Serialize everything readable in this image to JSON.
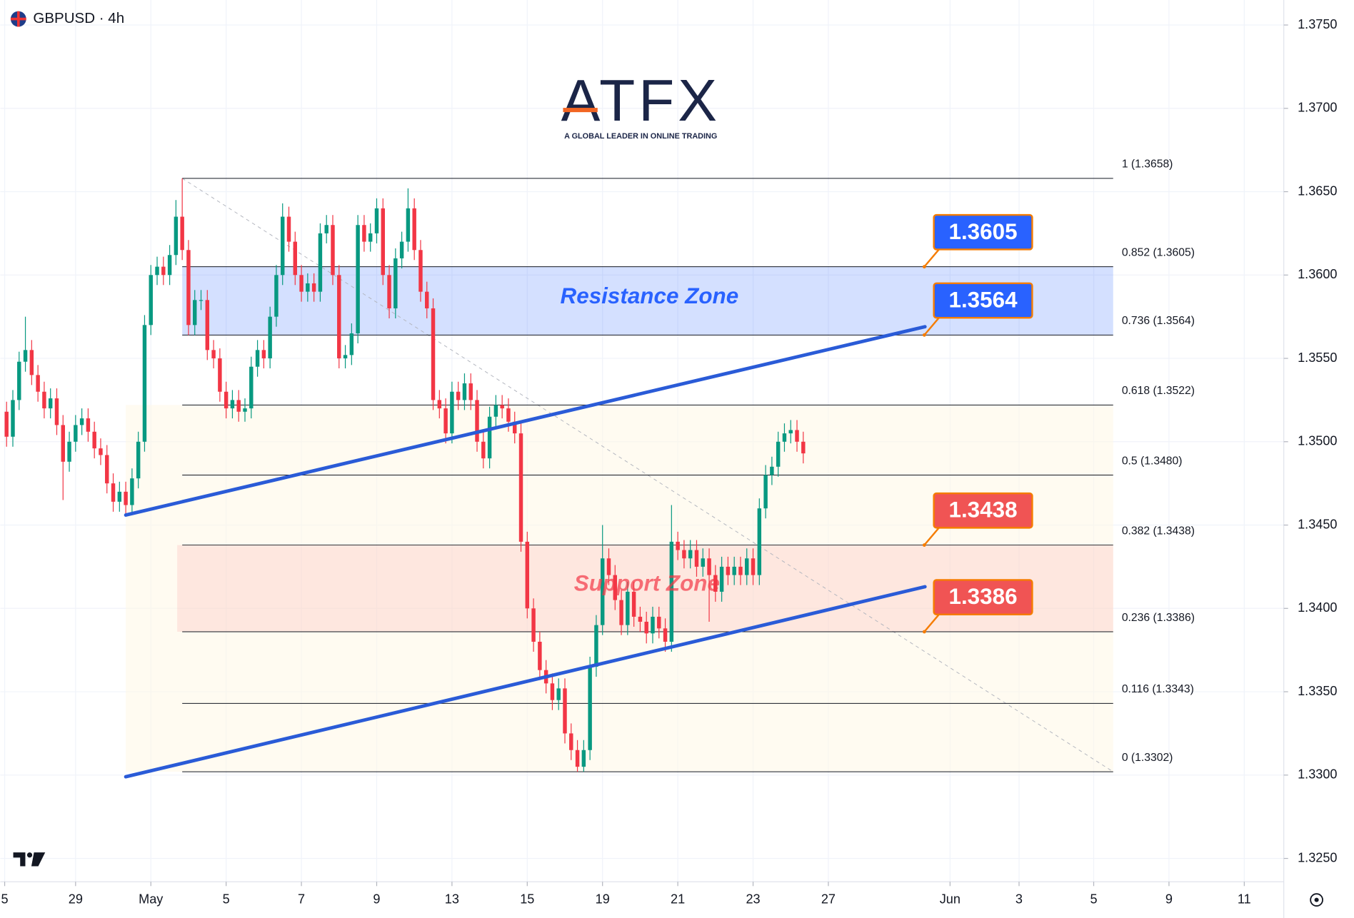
{
  "chart_data": {
    "type": "candlestick",
    "title": "GBPUSD · 4h",
    "logo": {
      "name": "ATFX",
      "tagline": "A GLOBAL LEADER IN ONLINE TRADING"
    },
    "up_color": "#089981",
    "down_color": "#f23645",
    "xlim": [
      0,
      204.6
    ],
    "ylim": [
      1.3236,
      1.3765
    ],
    "grid": true,
    "xticks": [
      {
        "value": 0.7,
        "label": "5"
      },
      {
        "value": 12,
        "label": "29"
      },
      {
        "value": 24,
        "label": "May"
      },
      {
        "value": 36,
        "label": "5"
      },
      {
        "value": 48,
        "label": "7"
      },
      {
        "value": 60,
        "label": "9"
      },
      {
        "value": 72,
        "label": "13"
      },
      {
        "value": 84,
        "label": "15"
      },
      {
        "value": 96,
        "label": "19"
      },
      {
        "value": 108,
        "label": "21"
      },
      {
        "value": 120,
        "label": "23"
      },
      {
        "value": 132,
        "label": "27"
      },
      {
        "value": 151.4,
        "label": "Jun"
      },
      {
        "value": 162.4,
        "label": "3"
      },
      {
        "value": 174.3,
        "label": "5"
      },
      {
        "value": 186.3,
        "label": "9"
      },
      {
        "value": 198.3,
        "label": "11"
      }
    ],
    "yticks": [
      {
        "value": 1.375,
        "label": "1.3750"
      },
      {
        "value": 1.37,
        "label": "1.3700"
      },
      {
        "value": 1.365,
        "label": "1.3650"
      },
      {
        "value": 1.36,
        "label": "1.3600"
      },
      {
        "value": 1.355,
        "label": "1.3550"
      },
      {
        "value": 1.35,
        "label": "1.3500"
      },
      {
        "value": 1.345,
        "label": "1.3450"
      },
      {
        "value": 1.34,
        "label": "1.3400"
      },
      {
        "value": 1.335,
        "label": "1.3350"
      },
      {
        "value": 1.33,
        "label": "1.3300"
      },
      {
        "value": 1.325,
        "label": "1.3250"
      }
    ],
    "x": [
      1,
      2,
      3,
      4,
      5,
      6,
      7,
      8,
      9,
      10,
      11,
      12,
      13,
      14,
      15,
      16,
      17,
      18,
      19,
      20,
      21,
      22,
      23,
      24,
      25,
      26,
      27,
      28,
      29,
      30,
      31,
      32,
      33,
      34,
      35,
      36,
      37,
      38,
      39,
      40,
      41,
      42,
      43,
      44,
      45,
      46,
      47,
      48,
      49,
      50,
      51,
      52,
      53,
      54,
      55,
      56,
      57,
      58,
      59,
      60,
      61,
      62,
      63,
      64,
      65,
      66,
      67,
      68,
      69,
      70,
      71,
      72,
      73,
      74,
      75,
      76,
      77,
      78,
      79,
      80,
      81,
      82,
      83,
      84,
      85,
      86,
      87,
      88,
      89,
      90,
      91,
      92,
      93,
      94,
      95,
      96,
      97,
      98,
      99,
      100,
      101,
      102,
      103,
      104,
      105,
      106,
      107,
      108,
      109,
      110,
      111,
      112,
      113,
      114,
      115,
      116,
      117,
      118,
      119,
      120,
      121,
      122,
      123,
      124,
      125,
      126,
      127,
      128
    ],
    "open": [
      1.3518,
      1.3503,
      1.3525,
      1.3548,
      1.3555,
      1.354,
      1.353,
      1.352,
      1.3526,
      1.351,
      1.3488,
      1.35,
      1.351,
      1.3514,
      1.3506,
      1.3496,
      1.3492,
      1.3475,
      1.3464,
      1.347,
      1.3462,
      1.3478,
      1.35,
      1.357,
      1.36,
      1.3605,
      1.36,
      1.3612,
      1.3635,
      1.3615,
      1.357,
      1.3585,
      1.3585,
      1.3555,
      1.355,
      1.353,
      1.352,
      1.3525,
      1.3518,
      1.352,
      1.3545,
      1.3555,
      1.355,
      1.3575,
      1.36,
      1.3635,
      1.362,
      1.36,
      1.359,
      1.3595,
      1.359,
      1.3625,
      1.363,
      1.36,
      1.355,
      1.3552,
      1.3565,
      1.363,
      1.362,
      1.3625,
      1.364,
      1.36,
      1.358,
      1.361,
      1.362,
      1.364,
      1.3615,
      1.359,
      1.358,
      1.3525,
      1.352,
      1.3505,
      1.353,
      1.3525,
      1.3535,
      1.3525,
      1.35,
      1.349,
      1.3515,
      1.3522,
      1.352,
      1.3512,
      1.3505,
      1.344,
      1.34,
      1.338,
      1.3363,
      1.3355,
      1.3345,
      1.3352,
      1.3325,
      1.3315,
      1.3305,
      1.3315,
      1.3365,
      1.339,
      1.343,
      1.342,
      1.3405,
      1.339,
      1.341,
      1.3395,
      1.3392,
      1.3385,
      1.3395,
      1.3388,
      1.338,
      1.344,
      1.3435,
      1.343,
      1.3435,
      1.3425,
      1.343,
      1.342,
      1.341,
      1.3425,
      1.342,
      1.3425,
      1.342,
      1.343,
      1.342,
      1.346,
      1.348,
      1.3485,
      1.35,
      1.3505,
      1.3507,
      1.35
    ],
    "high": [
      1.3524,
      1.3531,
      1.3554,
      1.3575,
      1.3561,
      1.3546,
      1.3536,
      1.3532,
      1.3532,
      1.3516,
      1.3506,
      1.3516,
      1.352,
      1.352,
      1.3512,
      1.3502,
      1.3498,
      1.3481,
      1.3476,
      1.3476,
      1.3484,
      1.3506,
      1.3576,
      1.3606,
      1.3611,
      1.3611,
      1.3618,
      1.3645,
      1.3658,
      1.3621,
      1.3591,
      1.3591,
      1.3591,
      1.3561,
      1.3556,
      1.3536,
      1.3531,
      1.3531,
      1.3526,
      1.3551,
      1.3561,
      1.3561,
      1.3581,
      1.3606,
      1.3643,
      1.3641,
      1.3626,
      1.3606,
      1.3601,
      1.3601,
      1.3631,
      1.3636,
      1.3636,
      1.3606,
      1.3558,
      1.3571,
      1.3636,
      1.3636,
      1.3631,
      1.3646,
      1.3646,
      1.3606,
      1.3616,
      1.3626,
      1.3652,
      1.3646,
      1.3621,
      1.3596,
      1.3586,
      1.3531,
      1.3526,
      1.3536,
      1.3536,
      1.3541,
      1.3541,
      1.3531,
      1.3506,
      1.3521,
      1.3528,
      1.3528,
      1.3526,
      1.3518,
      1.3511,
      1.3446,
      1.3406,
      1.3386,
      1.3369,
      1.3361,
      1.3358,
      1.3358,
      1.3331,
      1.3321,
      1.3321,
      1.3371,
      1.3396,
      1.345,
      1.3436,
      1.3426,
      1.3411,
      1.3416,
      1.3416,
      1.3401,
      1.3398,
      1.3401,
      1.3401,
      1.3394,
      1.3462,
      1.3446,
      1.3441,
      1.3441,
      1.3441,
      1.3436,
      1.3436,
      1.3426,
      1.3431,
      1.3431,
      1.3431,
      1.3431,
      1.3436,
      1.3436,
      1.3466,
      1.3486,
      1.3491,
      1.3506,
      1.3511,
      1.3513,
      1.3513,
      1.3506
    ],
    "low": [
      1.3497,
      1.3497,
      1.3519,
      1.3542,
      1.3534,
      1.3524,
      1.3514,
      1.3514,
      1.3504,
      1.3465,
      1.3482,
      1.3494,
      1.3504,
      1.35,
      1.349,
      1.3486,
      1.3469,
      1.3458,
      1.3458,
      1.3456,
      1.3456,
      1.3472,
      1.3494,
      1.3564,
      1.3594,
      1.3594,
      1.3594,
      1.3606,
      1.3609,
      1.3564,
      1.3564,
      1.3579,
      1.3549,
      1.3544,
      1.3524,
      1.3514,
      1.3514,
      1.3512,
      1.3512,
      1.3514,
      1.3539,
      1.3544,
      1.3544,
      1.3569,
      1.3594,
      1.3614,
      1.3594,
      1.3584,
      1.3584,
      1.3584,
      1.3584,
      1.3619,
      1.3594,
      1.3544,
      1.3544,
      1.3546,
      1.3559,
      1.3614,
      1.3614,
      1.3619,
      1.3594,
      1.3574,
      1.3574,
      1.3604,
      1.3614,
      1.3609,
      1.3584,
      1.3574,
      1.3519,
      1.3514,
      1.3499,
      1.3499,
      1.3519,
      1.3519,
      1.3519,
      1.3494,
      1.3484,
      1.3484,
      1.3509,
      1.3514,
      1.3506,
      1.3499,
      1.3434,
      1.3394,
      1.3374,
      1.3357,
      1.3349,
      1.3339,
      1.3339,
      1.3319,
      1.3309,
      1.3302,
      1.3302,
      1.3309,
      1.3359,
      1.3384,
      1.3414,
      1.3399,
      1.3384,
      1.3384,
      1.3389,
      1.3386,
      1.3379,
      1.3379,
      1.3382,
      1.3374,
      1.3374,
      1.3429,
      1.3424,
      1.3424,
      1.3419,
      1.3419,
      1.3392,
      1.3404,
      1.3404,
      1.3414,
      1.3414,
      1.3414,
      1.3414,
      1.3414,
      1.3414,
      1.3454,
      1.3474,
      1.3479,
      1.3494,
      1.3499,
      1.3494,
      1.3487
    ],
    "close": [
      1.3503,
      1.3525,
      1.3548,
      1.3555,
      1.354,
      1.353,
      1.352,
      1.3526,
      1.351,
      1.3488,
      1.35,
      1.351,
      1.3514,
      1.3506,
      1.3496,
      1.3492,
      1.3475,
      1.3464,
      1.347,
      1.3462,
      1.3478,
      1.35,
      1.357,
      1.36,
      1.3605,
      1.36,
      1.3612,
      1.3635,
      1.3615,
      1.357,
      1.3585,
      1.3585,
      1.3555,
      1.355,
      1.353,
      1.352,
      1.3525,
      1.3518,
      1.352,
      1.3545,
      1.3555,
      1.355,
      1.3575,
      1.36,
      1.3635,
      1.362,
      1.36,
      1.359,
      1.3595,
      1.359,
      1.3625,
      1.363,
      1.36,
      1.355,
      1.3552,
      1.3565,
      1.363,
      1.362,
      1.3625,
      1.364,
      1.36,
      1.358,
      1.361,
      1.362,
      1.364,
      1.3615,
      1.359,
      1.358,
      1.3525,
      1.352,
      1.3505,
      1.353,
      1.3525,
      1.3535,
      1.3525,
      1.35,
      1.349,
      1.3515,
      1.3522,
      1.352,
      1.3512,
      1.3505,
      1.344,
      1.34,
      1.338,
      1.3363,
      1.3355,
      1.3345,
      1.3352,
      1.3325,
      1.3315,
      1.3305,
      1.3315,
      1.3365,
      1.339,
      1.343,
      1.342,
      1.3405,
      1.339,
      1.341,
      1.3395,
      1.3392,
      1.3385,
      1.3395,
      1.3388,
      1.338,
      1.344,
      1.3435,
      1.343,
      1.3435,
      1.3425,
      1.343,
      1.342,
      1.341,
      1.3425,
      1.342,
      1.3425,
      1.342,
      1.343,
      1.342,
      1.346,
      1.348,
      1.3485,
      1.35,
      1.3505,
      1.3507,
      1.35,
      1.3493
    ],
    "fib_x": [
      29,
      177.4
    ],
    "fib": [
      {
        "level": "1 (1.3658)",
        "value": 1.3658
      },
      {
        "level": "0.852 (1.3605)",
        "value": 1.3605
      },
      {
        "level": "0.736 (1.3564)",
        "value": 1.3564
      },
      {
        "level": "0.618 (1.3522)",
        "value": 1.3522
      },
      {
        "level": "0.5 (1.3480)",
        "value": 1.348
      },
      {
        "level": "0.382 (1.3438)",
        "value": 1.3438
      },
      {
        "level": "0.236 (1.3386)",
        "value": 1.3386
      },
      {
        "level": "0.116 (1.3343)",
        "value": 1.3343
      },
      {
        "level": "0 (1.3302)",
        "value": 1.3302
      }
    ],
    "zones": [
      {
        "label": "Resistance Zone",
        "range": [
          1.3564,
          1.3605
        ],
        "x": [
          29,
          177.4
        ],
        "color": "#2962ff"
      },
      {
        "label": "Support Zone",
        "range": [
          1.3386,
          1.3438
        ],
        "x": [
          28.2,
          177.4
        ],
        "color": "#f23645"
      }
    ],
    "trendlines": [
      {
        "x": [
          20,
          147.4
        ],
        "y": [
          1.3456,
          1.3569
        ],
        "color": "#2a5bd7"
      },
      {
        "x": [
          20,
          147.4
        ],
        "y": [
          1.3299,
          1.3413
        ],
        "color": "#2a5bd7"
      }
    ],
    "tag_x": 147.3,
    "tags": [
      {
        "value": 1.3605,
        "color": "#2962ff"
      },
      {
        "value": 1.3564,
        "color": "#2962ff"
      },
      {
        "value": 1.3438,
        "color": "#f05454"
      },
      {
        "value": 1.3386,
        "color": "#f05454"
      }
    ]
  }
}
